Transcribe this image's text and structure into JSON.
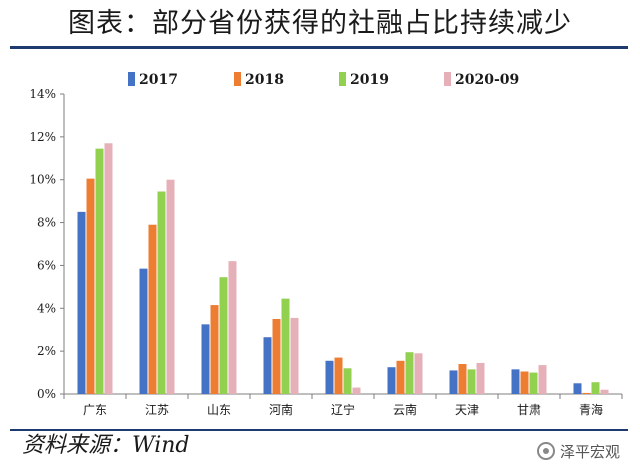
{
  "title": "图表：部分省份获得的社融占比持续减少",
  "source": "资料来源：Wind",
  "watermark": "泽平宏观",
  "watermark_icon": "wechat-icon",
  "chart_data": {
    "type": "bar",
    "title": "",
    "xlabel": "",
    "ylabel": "",
    "categories": [
      "广东",
      "江苏",
      "山东",
      "河南",
      "辽宁",
      "云南",
      "天津",
      "甘肃",
      "青海"
    ],
    "ylim": [
      0,
      14
    ],
    "yticks": [
      0,
      2,
      4,
      6,
      8,
      10,
      12,
      14
    ],
    "ytick_labels": [
      "0%",
      "2%",
      "4%",
      "6%",
      "8%",
      "10%",
      "12%",
      "14%"
    ],
    "unit": "%",
    "grid": false,
    "legend_position": "top",
    "series": [
      {
        "name": "2017",
        "color": "#4472c4",
        "values": [
          8.5,
          5.85,
          3.25,
          2.65,
          1.55,
          1.25,
          1.1,
          1.15,
          0.5
        ]
      },
      {
        "name": "2018",
        "color": "#ed7d31",
        "values": [
          10.05,
          7.9,
          4.15,
          3.5,
          1.7,
          1.55,
          1.4,
          1.05,
          0.05
        ]
      },
      {
        "name": "2019",
        "color": "#92d050",
        "values": [
          11.45,
          9.45,
          5.45,
          4.45,
          1.2,
          1.95,
          1.15,
          1.0,
          0.55
        ]
      },
      {
        "name": "2020-09",
        "color": "#e6b0b8",
        "values": [
          11.7,
          10.0,
          6.2,
          3.55,
          0.3,
          1.9,
          1.45,
          1.35,
          0.2
        ]
      }
    ]
  }
}
